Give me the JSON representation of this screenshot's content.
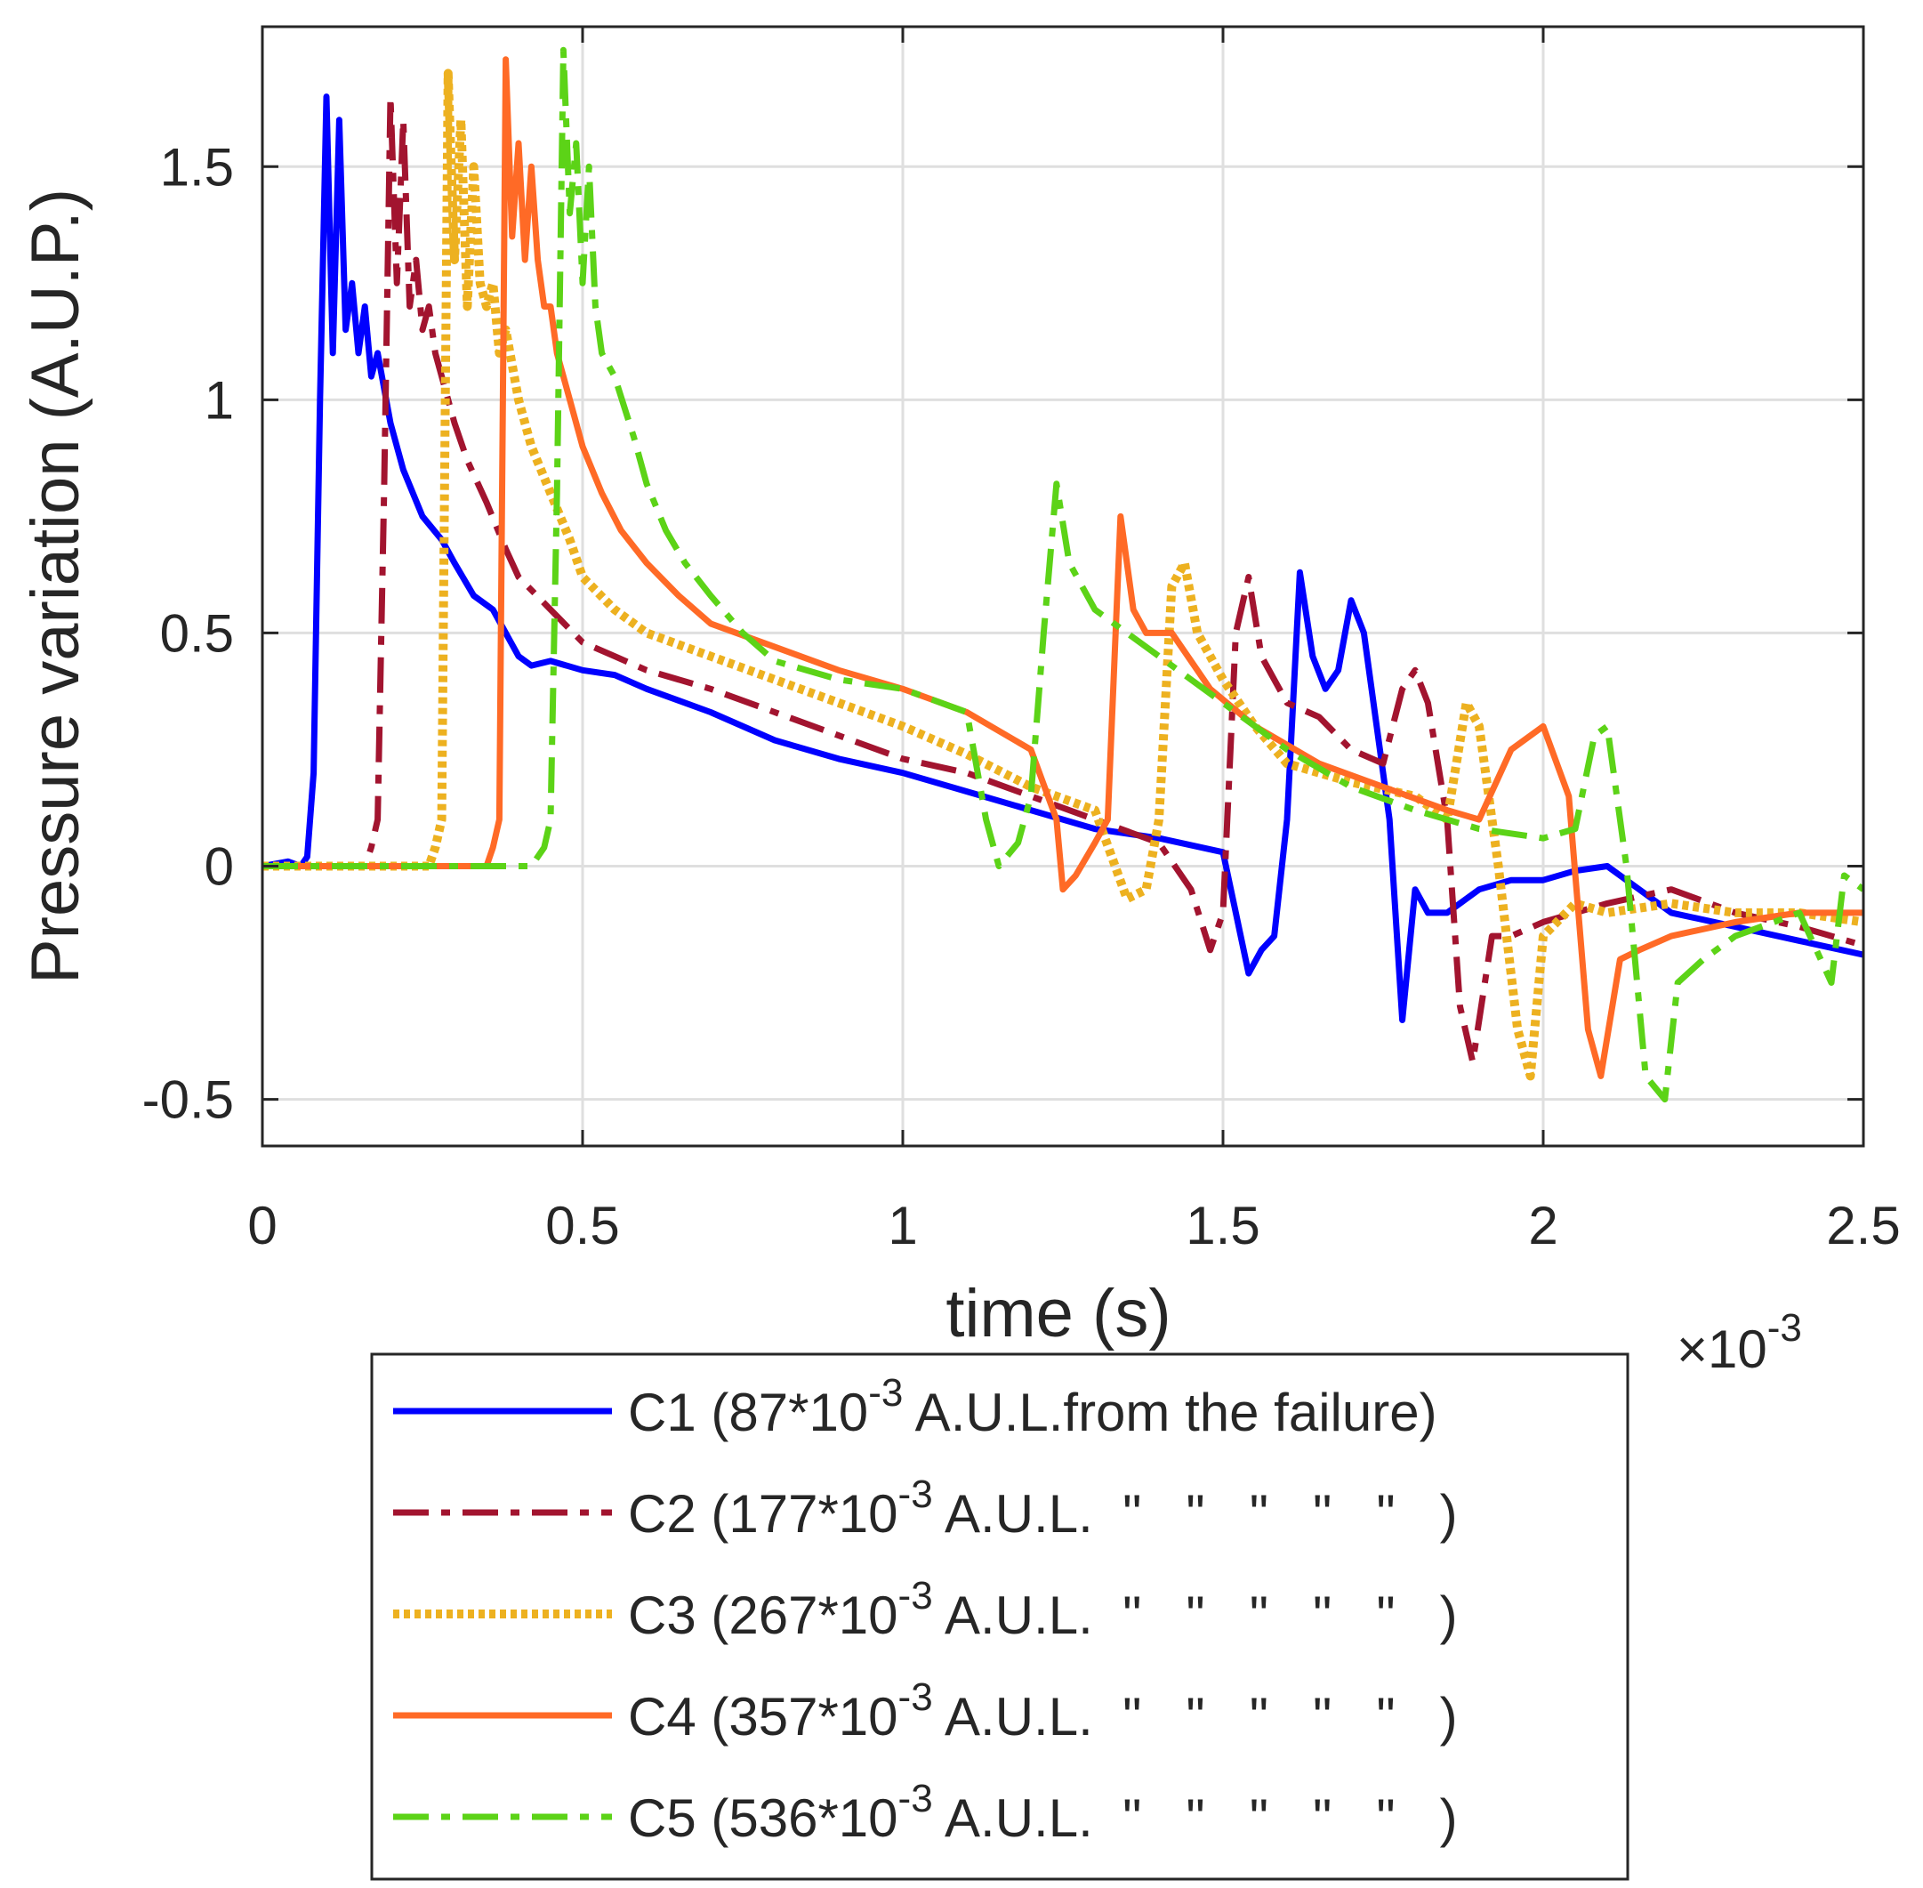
{
  "chart_data": {
    "type": "line",
    "title": "",
    "xlabel": "time (s)",
    "ylabel": "Pressure variation (A.U.P.)",
    "x_exponent_base": "×10",
    "x_exponent_power": "-3",
    "xlim": [
      0,
      2.5
    ],
    "ylim": [
      -0.6,
      1.8
    ],
    "xticks": [
      0,
      0.5,
      1,
      1.5,
      2,
      2.5
    ],
    "xtick_labels": [
      "0",
      "0.5",
      "1",
      "1.5",
      "2",
      "2.5"
    ],
    "yticks": [
      -0.5,
      0,
      0.5,
      1,
      1.5
    ],
    "ytick_labels": [
      "-0.5",
      "0",
      "0.5",
      "1",
      "1.5"
    ],
    "grid": true,
    "legend_position": "below-plot",
    "series": [
      {
        "name": "C1",
        "legend_prefix": "C1 (87*10",
        "legend_sup": "-3",
        "legend_suffix": " A.U.L.from the failure)",
        "color": "#0000ff",
        "dash": "solid",
        "x": [
          0,
          0.04,
          0.06,
          0.07,
          0.08,
          0.09,
          0.1,
          0.11,
          0.12,
          0.13,
          0.14,
          0.15,
          0.16,
          0.17,
          0.18,
          0.2,
          0.22,
          0.25,
          0.28,
          0.3,
          0.33,
          0.36,
          0.38,
          0.4,
          0.42,
          0.45,
          0.5,
          0.55,
          0.6,
          0.7,
          0.8,
          0.9,
          1.0,
          1.1,
          1.2,
          1.3,
          1.4,
          1.5,
          1.52,
          1.54,
          1.56,
          1.58,
          1.6,
          1.62,
          1.64,
          1.66,
          1.68,
          1.7,
          1.72,
          1.74,
          1.76,
          1.78,
          1.8,
          1.82,
          1.85,
          1.9,
          1.95,
          2.0,
          2.05,
          2.1,
          2.15,
          2.2,
          2.3,
          2.4,
          2.5
        ],
        "y": [
          0,
          0.01,
          0.0,
          0.02,
          0.2,
          1.0,
          1.65,
          1.1,
          1.6,
          1.15,
          1.25,
          1.1,
          1.2,
          1.05,
          1.1,
          0.95,
          0.85,
          0.75,
          0.7,
          0.65,
          0.58,
          0.55,
          0.5,
          0.45,
          0.43,
          0.44,
          0.42,
          0.41,
          0.38,
          0.33,
          0.27,
          0.23,
          0.2,
          0.16,
          0.12,
          0.08,
          0.06,
          0.03,
          -0.1,
          -0.23,
          -0.18,
          -0.15,
          0.1,
          0.63,
          0.45,
          0.38,
          0.42,
          0.57,
          0.5,
          0.3,
          0.1,
          -0.33,
          -0.05,
          -0.1,
          -0.1,
          -0.05,
          -0.03,
          -0.03,
          -0.01,
          0.0,
          -0.05,
          -0.1,
          -0.13,
          -0.16,
          -0.19
        ]
      },
      {
        "name": "C2",
        "legend_prefix": "C2 (177*10",
        "legend_sup": "-3",
        "legend_suffix": " A.U.L.  \"   \"   \"   \"   \"   )",
        "color": "#a2142f",
        "dash": "dashdot",
        "x": [
          0,
          0.12,
          0.16,
          0.17,
          0.18,
          0.19,
          0.2,
          0.21,
          0.22,
          0.23,
          0.24,
          0.25,
          0.26,
          0.27,
          0.28,
          0.3,
          0.32,
          0.35,
          0.38,
          0.4,
          0.45,
          0.5,
          0.55,
          0.6,
          0.7,
          0.8,
          0.9,
          1.0,
          1.1,
          1.2,
          1.3,
          1.4,
          1.45,
          1.48,
          1.5,
          1.52,
          1.54,
          1.56,
          1.6,
          1.65,
          1.7,
          1.75,
          1.78,
          1.8,
          1.82,
          1.85,
          1.87,
          1.89,
          1.92,
          1.95,
          2.0,
          2.05,
          2.1,
          2.2,
          2.3,
          2.4,
          2.5
        ],
        "y": [
          0,
          0.0,
          0.0,
          0.04,
          0.1,
          0.8,
          1.65,
          1.25,
          1.6,
          1.2,
          1.3,
          1.15,
          1.2,
          1.1,
          1.05,
          0.95,
          0.87,
          0.78,
          0.68,
          0.62,
          0.55,
          0.48,
          0.45,
          0.42,
          0.38,
          0.33,
          0.28,
          0.23,
          0.2,
          0.15,
          0.1,
          0.05,
          -0.05,
          -0.18,
          -0.1,
          0.5,
          0.62,
          0.45,
          0.35,
          0.32,
          0.25,
          0.22,
          0.38,
          0.42,
          0.35,
          0.1,
          -0.3,
          -0.42,
          -0.15,
          -0.15,
          -0.12,
          -0.1,
          -0.08,
          -0.05,
          -0.1,
          -0.13,
          -0.17
        ]
      },
      {
        "name": "C3",
        "legend_prefix": "C3 (267*10",
        "legend_sup": "-3",
        "legend_suffix": " A.U.L.  \"   \"   \"   \"   \"   )",
        "color": "#edb120",
        "dash": "dotted",
        "x": [
          0,
          0.22,
          0.26,
          0.27,
          0.28,
          0.29,
          0.3,
          0.31,
          0.32,
          0.33,
          0.34,
          0.35,
          0.36,
          0.37,
          0.38,
          0.4,
          0.42,
          0.45,
          0.48,
          0.5,
          0.55,
          0.6,
          0.7,
          0.8,
          0.9,
          1.0,
          1.1,
          1.2,
          1.3,
          1.35,
          1.38,
          1.4,
          1.42,
          1.44,
          1.46,
          1.5,
          1.55,
          1.6,
          1.7,
          1.8,
          1.85,
          1.88,
          1.9,
          1.93,
          1.96,
          1.98,
          2.0,
          2.05,
          2.1,
          2.2,
          2.3,
          2.4,
          2.5
        ],
        "y": [
          0,
          0.0,
          0.0,
          0.04,
          0.1,
          1.7,
          1.3,
          1.6,
          1.2,
          1.5,
          1.25,
          1.2,
          1.25,
          1.1,
          1.15,
          1.0,
          0.9,
          0.8,
          0.7,
          0.62,
          0.55,
          0.5,
          0.45,
          0.4,
          0.35,
          0.3,
          0.24,
          0.17,
          0.12,
          -0.07,
          -0.05,
          0.1,
          0.6,
          0.65,
          0.5,
          0.4,
          0.3,
          0.22,
          0.18,
          0.15,
          0.1,
          0.35,
          0.3,
          0.0,
          -0.35,
          -0.45,
          -0.15,
          -0.08,
          -0.1,
          -0.08,
          -0.1,
          -0.1,
          -0.12
        ]
      },
      {
        "name": "C4",
        "legend_prefix": "C4 (357*10",
        "legend_sup": "-3",
        "legend_suffix": " A.U.L.  \"   \"   \"   \"   \"   )",
        "color": "#ff6a26",
        "dash": "solid",
        "x": [
          0,
          0.32,
          0.35,
          0.36,
          0.37,
          0.38,
          0.39,
          0.4,
          0.41,
          0.42,
          0.43,
          0.44,
          0.45,
          0.46,
          0.47,
          0.48,
          0.5,
          0.53,
          0.56,
          0.6,
          0.65,
          0.7,
          0.8,
          0.9,
          1.0,
          1.1,
          1.2,
          1.24,
          1.25,
          1.27,
          1.3,
          1.32,
          1.34,
          1.36,
          1.38,
          1.42,
          1.48,
          1.55,
          1.65,
          1.75,
          1.85,
          1.9,
          1.95,
          2.0,
          2.04,
          2.07,
          2.09,
          2.12,
          2.15,
          2.2,
          2.3,
          2.4,
          2.5
        ],
        "y": [
          0,
          0.0,
          0.0,
          0.04,
          0.1,
          1.73,
          1.35,
          1.55,
          1.3,
          1.5,
          1.3,
          1.2,
          1.2,
          1.1,
          1.05,
          1.0,
          0.9,
          0.8,
          0.72,
          0.65,
          0.58,
          0.52,
          0.47,
          0.42,
          0.38,
          0.33,
          0.25,
          0.1,
          -0.05,
          -0.02,
          0.05,
          0.1,
          0.75,
          0.55,
          0.5,
          0.5,
          0.38,
          0.3,
          0.22,
          0.17,
          0.12,
          0.1,
          0.25,
          0.3,
          0.15,
          -0.35,
          -0.45,
          -0.2,
          -0.18,
          -0.15,
          -0.12,
          -0.1,
          -0.1
        ]
      },
      {
        "name": "C5",
        "legend_prefix": "C5 (536*10",
        "legend_sup": "-3",
        "legend_suffix": " A.U.L.  \"   \"   \"   \"   \"   )",
        "color": "#5cd317",
        "dash": "dashdot",
        "x": [
          0,
          0.42,
          0.44,
          0.45,
          0.46,
          0.47,
          0.48,
          0.49,
          0.5,
          0.51,
          0.52,
          0.53,
          0.55,
          0.58,
          0.6,
          0.63,
          0.66,
          0.7,
          0.75,
          0.8,
          0.9,
          1.0,
          1.1,
          1.13,
          1.15,
          1.18,
          1.2,
          1.22,
          1.24,
          1.26,
          1.3,
          1.35,
          1.4,
          1.5,
          1.6,
          1.7,
          1.8,
          1.9,
          2.0,
          2.05,
          2.08,
          2.1,
          2.13,
          2.16,
          2.19,
          2.21,
          2.25,
          2.3,
          2.4,
          2.45,
          2.47,
          2.5
        ],
        "y": [
          0,
          0.0,
          0.04,
          0.1,
          0.8,
          1.75,
          1.4,
          1.55,
          1.25,
          1.5,
          1.2,
          1.1,
          1.05,
          0.92,
          0.82,
          0.72,
          0.65,
          0.58,
          0.5,
          0.44,
          0.4,
          0.38,
          0.33,
          0.1,
          0.0,
          0.05,
          0.15,
          0.5,
          0.82,
          0.65,
          0.55,
          0.5,
          0.45,
          0.35,
          0.25,
          0.17,
          0.12,
          0.08,
          0.06,
          0.08,
          0.28,
          0.3,
          0.0,
          -0.45,
          -0.5,
          -0.25,
          -0.2,
          -0.15,
          -0.1,
          -0.25,
          -0.02,
          -0.05
        ]
      }
    ]
  }
}
